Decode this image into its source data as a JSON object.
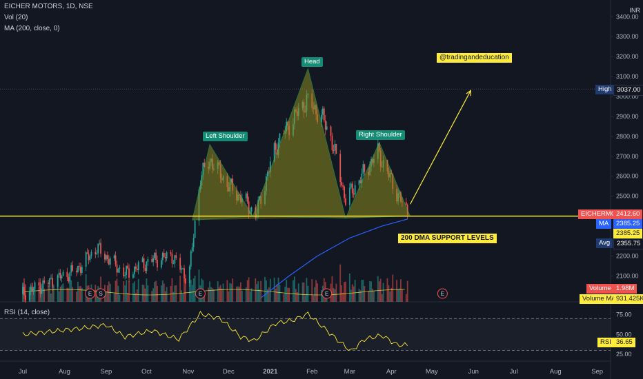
{
  "legend": {
    "symbol": "EICHER MOTORS, 1D, NSE",
    "volume": "Vol (20)",
    "ma": "MA (200, close, 0)",
    "rsi": "RSI (14, close)"
  },
  "currency": "INR",
  "annotations": {
    "head": "Head",
    "left_shoulder": "Left Shoulder",
    "right_shoulder": "Right Shoulder",
    "watermark": "@tradingandeducation",
    "support": "200 DMA SUPPORT LEVELS"
  },
  "price_tags": {
    "high_label": "High",
    "high_value": "3037.00",
    "sym_label": "EICHERMOT",
    "sym_value": "2412.60",
    "ma_label": "MA",
    "ma_value": "2385.25",
    "ma2_value": "2385.25",
    "avg_label": "Avg",
    "avg_value": "2355.75",
    "vol_label": "Volume",
    "vol_value": "1.98M",
    "volma_label": "Volume MA",
    "volma_value": "931.425K",
    "rsi_label": "RSI",
    "rsi_value": "36.65"
  },
  "colors": {
    "background": "#131722",
    "up": "#26a69a",
    "down": "#ef5350",
    "ma": "#2962ff",
    "support": "#ffeb3b",
    "pattern_fill": "#8a8a1e",
    "pattern_label_bg": "#138d75",
    "rsi": "#ffeb3b"
  },
  "chart_data": {
    "type": "candlestick",
    "price_axis": {
      "ticks": [
        "3400.00",
        "3300.00",
        "3200.00",
        "3100.00",
        "3000.00",
        "2900.00",
        "2800.00",
        "2700.00",
        "2600.00",
        "2500.00",
        "2200.00",
        "2100.00"
      ],
      "range": [
        1970,
        3470
      ]
    },
    "rsi_axis": {
      "ticks": [
        "75.00",
        "50.00",
        "25.00"
      ],
      "range": [
        20,
        85
      ],
      "bands": [
        70,
        30
      ]
    },
    "x_labels": [
      "Jul",
      "Aug",
      "Sep",
      "Oct",
      "Nov",
      "Dec",
      "2021",
      "Feb",
      "Mar",
      "Apr",
      "May",
      "Jun",
      "Jul",
      "Aug",
      "Sep"
    ],
    "earnings_markers": [
      "E",
      "S",
      "E",
      "E",
      "E"
    ],
    "price_waypoints": [
      [
        "2020-07-01",
        2010
      ],
      [
        "2020-08-10",
        2130
      ],
      [
        "2020-08-25",
        2240
      ],
      [
        "2020-09-15",
        2110
      ],
      [
        "2020-10-05",
        2180
      ],
      [
        "2020-10-20",
        2200
      ],
      [
        "2020-11-01",
        2080
      ],
      [
        "2020-11-05",
        2300
      ],
      [
        "2020-11-10",
        2600
      ],
      [
        "2020-11-18",
        2680
      ],
      [
        "2020-11-30",
        2560
      ],
      [
        "2020-12-15",
        2460
      ],
      [
        "2020-12-21",
        2400
      ],
      [
        "2021-01-05",
        2750
      ],
      [
        "2021-01-15",
        2860
      ],
      [
        "2021-01-28",
        2980
      ],
      [
        "2021-02-08",
        2900
      ],
      [
        "2021-02-15",
        2800
      ],
      [
        "2021-02-26",
        2480
      ],
      [
        "2021-03-10",
        2600
      ],
      [
        "2021-03-22",
        2720
      ],
      [
        "2021-04-05",
        2520
      ],
      [
        "2021-04-13",
        2412.6
      ]
    ],
    "ma_waypoints": [
      [
        "2020-12-25",
        1990
      ],
      [
        "2021-01-15",
        2100
      ],
      [
        "2021-02-05",
        2200
      ],
      [
        "2021-03-01",
        2290
      ],
      [
        "2021-03-25",
        2350
      ],
      [
        "2021-04-13",
        2385.25
      ]
    ],
    "rsi_waypoints": [
      [
        "2020-07-01",
        50
      ],
      [
        "2020-08-15",
        58
      ],
      [
        "2020-09-01",
        62
      ],
      [
        "2020-09-15",
        47
      ],
      [
        "2020-10-05",
        55
      ],
      [
        "2020-10-25",
        44
      ],
      [
        "2020-11-10",
        76
      ],
      [
        "2020-11-25",
        70
      ],
      [
        "2020-12-10",
        47
      ],
      [
        "2020-12-20",
        42
      ],
      [
        "2021-01-05",
        64
      ],
      [
        "2021-01-18",
        68
      ],
      [
        "2021-01-29",
        76
      ],
      [
        "2021-02-10",
        58
      ],
      [
        "2021-02-20",
        43
      ],
      [
        "2021-03-02",
        29
      ],
      [
        "2021-03-12",
        44
      ],
      [
        "2021-03-25",
        49
      ],
      [
        "2021-04-05",
        37
      ],
      [
        "2021-04-13",
        36.65
      ]
    ],
    "support_level": 2400,
    "high_level": 3037,
    "pattern_points": [
      [
        "2020-11-04",
        2380
      ],
      [
        "2020-11-17",
        2760
      ],
      [
        "2020-12-19",
        2400
      ],
      [
        "2021-01-29",
        3140
      ],
      [
        "2021-02-26",
        2390
      ],
      [
        "2021-03-23",
        2770
      ],
      [
        "2021-04-15",
        2400
      ]
    ],
    "projection": [
      [
        "2021-04-15",
        2460
      ],
      [
        "2021-05-30",
        3030
      ]
    ]
  }
}
